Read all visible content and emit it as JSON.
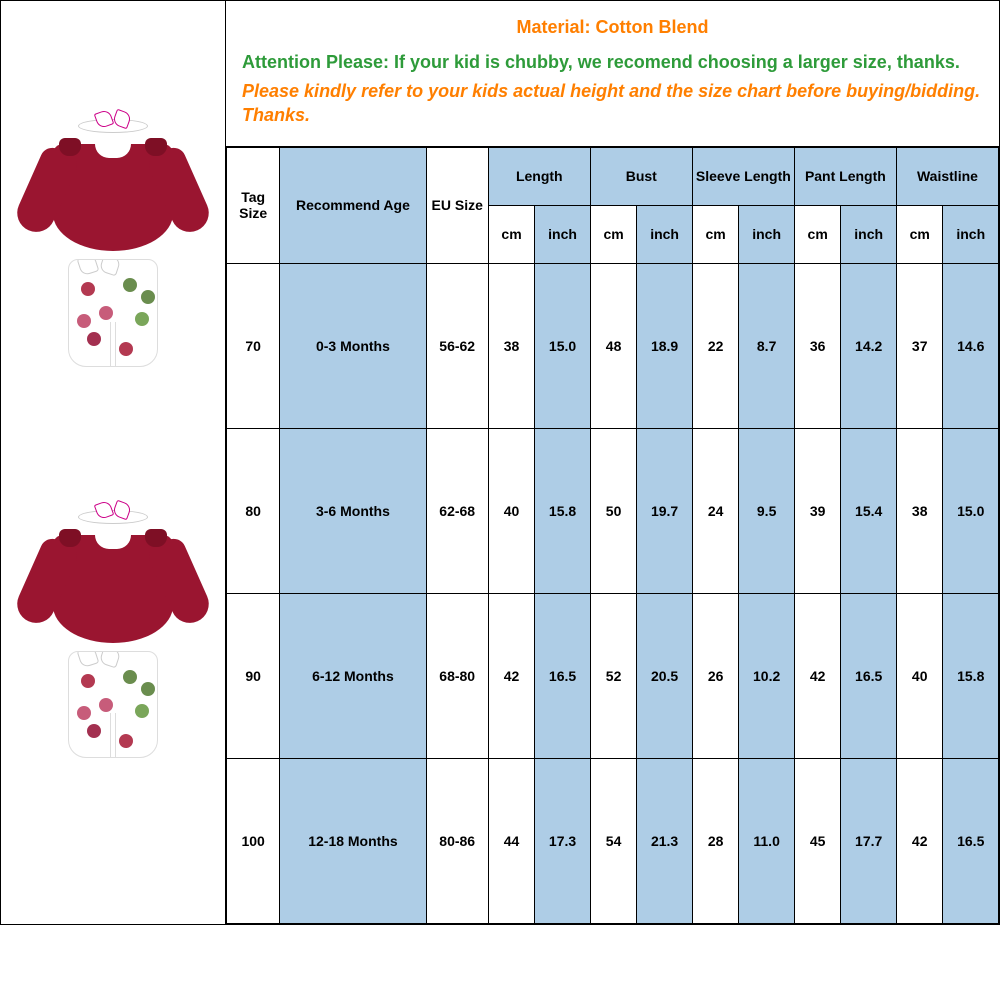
{
  "header": {
    "material": "Material: Cotton Blend",
    "attention": "Attention Please: If your kid is chubby, we recomend choosing a larger size,  thanks.",
    "please": "Please kindly refer to your kids actual height and the size chart before buying/bidding. Thanks."
  },
  "colors": {
    "header_orange": "#ff7f00",
    "header_green": "#2e9b3a",
    "table_blue": "#aecde6",
    "border": "#000000",
    "garment_red": "#9a1530"
  },
  "columns": {
    "tag": "Tag Size",
    "age": "Recommend Age",
    "eu": "EU Size",
    "length": "Length",
    "bust": "Bust",
    "sleeve": "Sleeve Length",
    "pant": "Pant Length",
    "waist": "Waistline",
    "cm": "cm",
    "inch": "inch"
  },
  "rows": [
    {
      "tag": "70",
      "age": "0-3 Months",
      "eu": "56-62",
      "len_cm": "38",
      "len_in": "15.0",
      "bust_cm": "48",
      "bust_in": "18.9",
      "slv_cm": "22",
      "slv_in": "8.7",
      "pant_cm": "36",
      "pant_in": "14.2",
      "waist_cm": "37",
      "waist_in": "14.6"
    },
    {
      "tag": "80",
      "age": "3-6 Months",
      "eu": "62-68",
      "len_cm": "40",
      "len_in": "15.8",
      "bust_cm": "50",
      "bust_in": "19.7",
      "slv_cm": "24",
      "slv_in": "9.5",
      "pant_cm": "39",
      "pant_in": "15.4",
      "waist_cm": "38",
      "waist_in": "15.0"
    },
    {
      "tag": "90",
      "age": "6-12 Months",
      "eu": "68-80",
      "len_cm": "42",
      "len_in": "16.5",
      "bust_cm": "52",
      "bust_in": "20.5",
      "slv_cm": "26",
      "slv_in": "10.2",
      "pant_cm": "42",
      "pant_in": "16.5",
      "waist_cm": "40",
      "waist_in": "15.8"
    },
    {
      "tag": "100",
      "age": "12-18 Months",
      "eu": "80-86",
      "len_cm": "44",
      "len_in": "17.3",
      "bust_cm": "54",
      "bust_in": "21.3",
      "slv_cm": "28",
      "slv_in": "11.0",
      "pant_cm": "45",
      "pant_in": "17.7",
      "waist_cm": "42",
      "waist_in": "16.5"
    }
  ],
  "flower_colors": [
    "#b33951",
    "#6a8d4e",
    "#c75c7a",
    "#7aa65a",
    "#a33050"
  ]
}
